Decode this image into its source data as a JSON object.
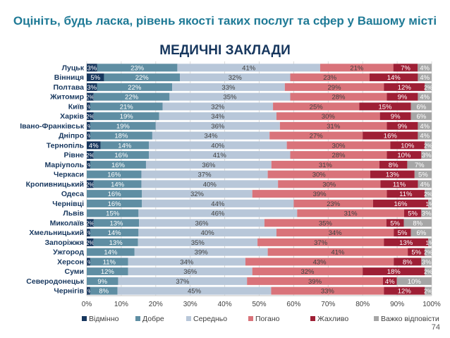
{
  "page": {
    "title": "Оцініть, будь ласка, рівень якості таких послуг та сфер у Вашому місті",
    "subtitle": "МЕДИЧНІ ЗАКЛАДИ",
    "page_number": "74"
  },
  "chart_data": {
    "type": "bar",
    "orientation": "horizontal",
    "stacked": true,
    "percent": true,
    "xlim": [
      0,
      100
    ],
    "x_ticks": [
      "0%",
      "10%",
      "20%",
      "30%",
      "40%",
      "50%",
      "60%",
      "70%",
      "80%",
      "90%",
      "100%"
    ],
    "legend_position": "bottom",
    "categories": [
      "Луцьк",
      "Вінниця",
      "Полтава",
      "Житомир",
      "Київ",
      "Харків",
      "Івано-Франківськ",
      "Дніпро",
      "Тернопіль",
      "Рівне",
      "Маріуполь",
      "Черкаси",
      "Кропивницький",
      "Одеса",
      "Чернівці",
      "Львів",
      "Миколаїв",
      "Хмельницький",
      "Запоріжжя",
      "Ужгород",
      "Херсон",
      "Суми",
      "Северодонецьк",
      "Чернігів"
    ],
    "series": [
      {
        "name": "Відмінно",
        "color": "#17375e",
        "values": [
          3,
          5,
          3,
          2,
          1,
          2,
          1,
          1,
          4,
          2,
          1,
          0,
          2,
          0,
          0,
          0,
          2,
          1,
          2,
          0,
          1,
          0,
          0,
          1
        ]
      },
      {
        "name": "Добре",
        "color": "#5f8ea3",
        "values": [
          23,
          22,
          22,
          22,
          21,
          19,
          19,
          18,
          14,
          16,
          16,
          16,
          14,
          16,
          16,
          15,
          13,
          14,
          13,
          14,
          11,
          12,
          9,
          8
        ]
      },
      {
        "name": "Середньо",
        "color": "#b8c7d9",
        "values": [
          41,
          32,
          33,
          35,
          32,
          34,
          36,
          34,
          40,
          41,
          36,
          37,
          40,
          32,
          44,
          46,
          36,
          40,
          35,
          39,
          34,
          36,
          37,
          45
        ]
      },
      {
        "name": "Погано",
        "color": "#d9737a",
        "values": [
          21,
          23,
          29,
          28,
          25,
          30,
          31,
          27,
          30,
          28,
          31,
          30,
          30,
          39,
          23,
          31,
          35,
          34,
          37,
          41,
          43,
          32,
          39,
          33
        ]
      },
      {
        "name": "Жахливо",
        "color": "#9e1f35",
        "values": [
          7,
          14,
          12,
          9,
          15,
          9,
          9,
          16,
          10,
          10,
          8,
          13,
          11,
          11,
          16,
          5,
          5,
          5,
          13,
          5,
          8,
          18,
          4,
          12
        ]
      },
      {
        "name": "Важко відповісти",
        "color": "#a6a6a6",
        "values": [
          4,
          4,
          2,
          4,
          6,
          6,
          4,
          4,
          2,
          3,
          7,
          5,
          4,
          2,
          1,
          3,
          8,
          6,
          1,
          2,
          3,
          2,
          10,
          2
        ]
      }
    ]
  }
}
